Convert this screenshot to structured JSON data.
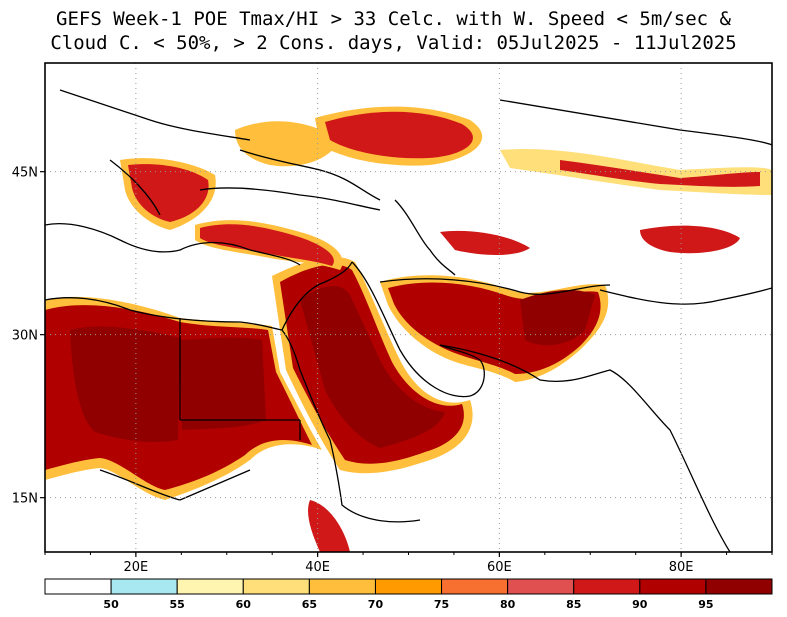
{
  "title": {
    "line1": "GEFS Week-1 POE Tmax/HI > 33 Celc. with W. Speed < 5m/sec &",
    "line2": "Cloud C. < 50%, > 2 Cons. days, Valid: 05Jul2025 - 11Jul2025"
  },
  "map": {
    "lon_range": [
      10,
      90
    ],
    "lat_range": [
      10,
      55
    ],
    "x_ticks": [
      {
        "value": 20,
        "label": "20E"
      },
      {
        "value": 40,
        "label": "40E"
      },
      {
        "value": 60,
        "label": "60E"
      },
      {
        "value": 80,
        "label": "80E"
      }
    ],
    "y_ticks": [
      {
        "value": 45,
        "label": "45N"
      },
      {
        "value": 30,
        "label": "30N"
      },
      {
        "value": 15,
        "label": "15N"
      }
    ],
    "grid": "dotted"
  },
  "colorbar": {
    "levels": [
      "50",
      "55",
      "60",
      "65",
      "70",
      "75",
      "80",
      "85",
      "90",
      "95"
    ],
    "colors": [
      "#ffffff",
      "#a8e8f0",
      "#fff4b0",
      "#ffdf7a",
      "#ffbf3c",
      "#ff9a00",
      "#f87030",
      "#e05050",
      "#d01818",
      "#b00000",
      "#900000"
    ]
  }
}
